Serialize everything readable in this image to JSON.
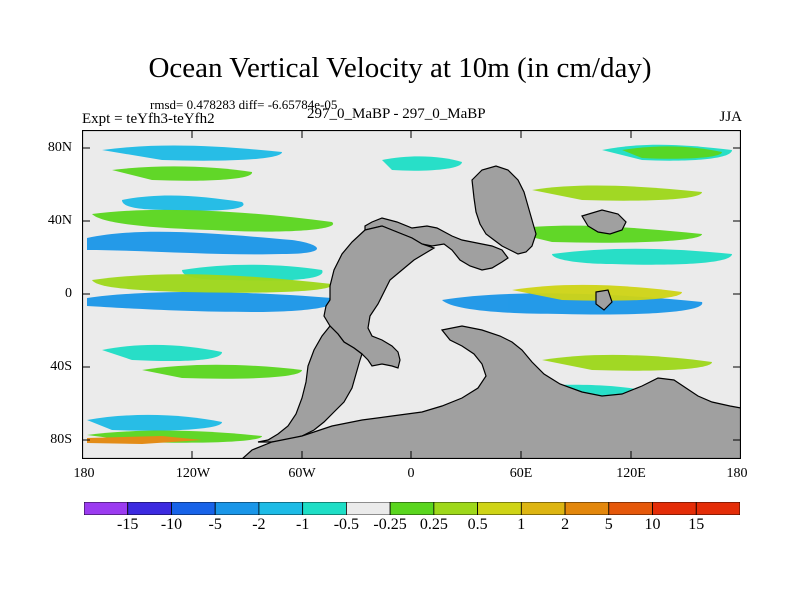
{
  "title": "Ocean Vertical Velocity at 10m (in cm/day)",
  "stats": "rmsd= 0.478283 diff= -6.65784e-05",
  "experiment": "Expt = teYfh3-teYfh2",
  "runs": "297_0_MaBP - 297_0_MaBP",
  "season": "JJA",
  "map": {
    "y_axis_labels": [
      "80N",
      "40N",
      "0",
      "40S",
      "80S"
    ],
    "x_axis_labels": [
      "180",
      "120W",
      "60W",
      "0",
      "60E",
      "120E",
      "180"
    ]
  },
  "colorbar": {
    "colors": [
      "#9b3bf0",
      "#3c2ae0",
      "#1863e8",
      "#1a96e8",
      "#1dbbe6",
      "#1edec6",
      "#ebebeb",
      "#5ad61e",
      "#9ed81a",
      "#cfd416",
      "#ddb512",
      "#e3870c",
      "#e5580a",
      "#e42d08"
    ],
    "labels": [
      "-15",
      "-10",
      "-5",
      "-2",
      "-1",
      "-0.5",
      "-0.25",
      "0.25",
      "0.5",
      "1",
      "2",
      "5",
      "10",
      "15"
    ]
  }
}
